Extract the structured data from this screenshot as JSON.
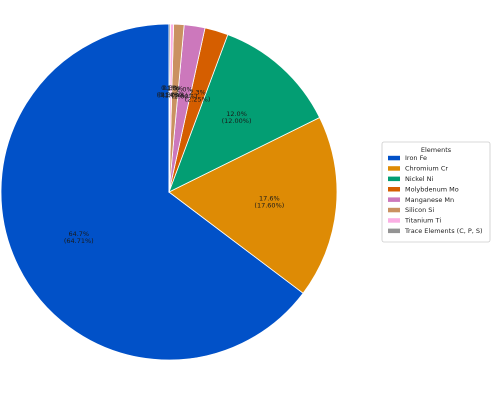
{
  "chart_data": {
    "type": "pie",
    "title": "",
    "legend_title": "Elements",
    "legend_position": "right",
    "start_angle_deg": 90,
    "direction": "counterclockwise",
    "categories": [
      "Iron Fe",
      "Chromium Cr",
      "Nickel Ni",
      "Molybdenum Mo",
      "Manganese Mn",
      "Silicon Si",
      "Titanium Ti",
      "Trace Elements (C, P, S)"
    ],
    "values": [
      64.71,
      17.6,
      12.0,
      2.25,
      2.0,
      1.0,
      0.3,
      0.14
    ],
    "labels": [
      [
        "64.7%",
        "(64.71%)"
      ],
      [
        "17.6%",
        "(17.60%)"
      ],
      [
        "12.0%",
        "(12.00%)"
      ],
      [
        "2.3%",
        "(2.25%)"
      ],
      [
        "2.0%",
        "(2.00%)"
      ],
      [
        "1.0%",
        "(1.00%)"
      ],
      [
        "0.3%",
        "(0.30%)"
      ],
      [
        "0.1%",
        "(0.14%)"
      ]
    ],
    "colors": [
      "#0151c8",
      "#de8b05",
      "#039e73",
      "#d55e00",
      "#cc78bc",
      "#ca9161",
      "#fbafe4",
      "#949494"
    ]
  }
}
